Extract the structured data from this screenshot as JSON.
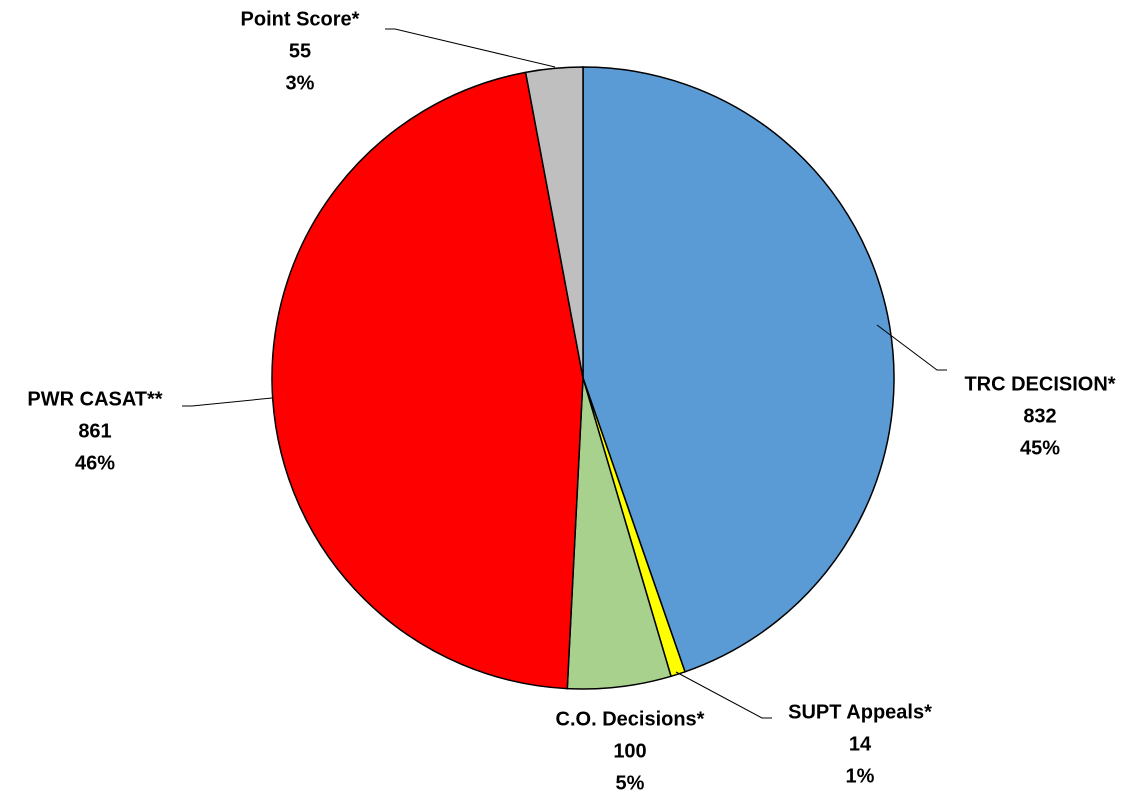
{
  "chart_data": {
    "type": "pie",
    "categories": [
      "TRC DECISION*",
      "SUPT Appeals*",
      "C.O. Decisions*",
      "PWR CASAT**",
      "Point Score*"
    ],
    "values": [
      832,
      14,
      100,
      861,
      55
    ],
    "percent_labels": [
      "45%",
      "1%",
      "5%",
      "46%",
      "3%"
    ],
    "colors": [
      "#5b9bd5",
      "#ffff00",
      "#a9d18e",
      "#ff0000",
      "#bfbfbf"
    ]
  }
}
